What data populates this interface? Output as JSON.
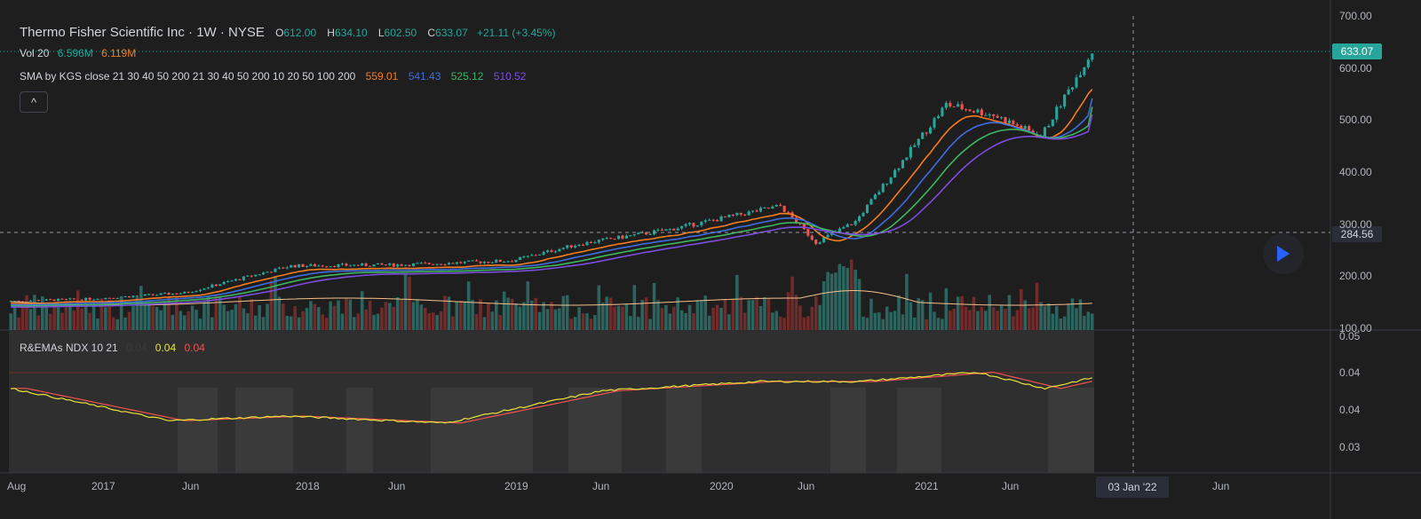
{
  "legend": {
    "symbol": "Thermo Fisher Scientific Inc · 1W · NYSE",
    "o_label": "O",
    "o_value": "612.00",
    "h_label": "H",
    "h_value": "634.10",
    "l_label": "L",
    "l_value": "602.50",
    "c_label": "C",
    "c_value": "633.07",
    "change": "+21.11 (+3.45%)",
    "vol_label": "Vol 20",
    "vol_value": "6.596M",
    "vol_ma": "6.119M",
    "sma_label": "SMA by KGS close 21 30 40 50 200 21 30 40 50 200 10 20 50 100 200",
    "sma_values": [
      "559.01",
      "541.43",
      "525.12",
      "510.52"
    ],
    "rema_label": "R&EMAs NDX 10 21",
    "rema_values": [
      "0.04",
      "0.04",
      "0.04"
    ],
    "collapse_icon": "^"
  },
  "colors": {
    "up": "#26a69a",
    "down": "#ef5350",
    "sma1": "#f57c1f",
    "sma2": "#3f6de0",
    "sma3": "#3fb560",
    "sma4": "#7c4ddf",
    "ema_fast": "#e8e33c",
    "ema_slow": "#ef5350",
    "price_tag": "#26a69a",
    "cursor_tag": "#2a2e39"
  },
  "price_axis": {
    "ticks": [
      "700.00",
      "600.00",
      "500.00",
      "400.00",
      "300.00",
      "200.00",
      "100.00"
    ],
    "current_price": "633.07",
    "cursor_price": "284.56"
  },
  "indicator_axis": {
    "ticks": [
      "0.05",
      "0.04",
      "0.04",
      "0.03"
    ]
  },
  "time_axis": {
    "ticks": [
      "Aug",
      "2017",
      "Jun",
      "2018",
      "Jun",
      "2019",
      "Jun",
      "2020",
      "Jun",
      "2021",
      "Jun",
      "Jun"
    ],
    "cursor_date": "03 Jan '22"
  },
  "chart_data": {
    "type": "line",
    "title": "Thermo Fisher Scientific Inc · 1W · NYSE",
    "x": [
      "2016-08",
      "2017-01",
      "2017-06",
      "2018-01",
      "2018-06",
      "2019-01",
      "2019-06",
      "2020-01",
      "2020-03",
      "2020-06",
      "2020-11",
      "2021-01",
      "2021-06",
      "2021-11"
    ],
    "series": [
      {
        "name": "C",
        "values": [
          152,
          156,
          168,
          220,
          222,
          230,
          290,
          335,
          265,
          350,
          530,
          505,
          468,
          633
        ]
      }
    ],
    "sma_values": [
      559.01,
      541.43,
      525.12,
      510.52
    ],
    "ylim": [
      100,
      700
    ],
    "volume": {
      "last": "6.596M",
      "ma20": "6.119M"
    },
    "indicator": {
      "name": "R&EMAs NDX 10 21",
      "ylim": [
        0.025,
        0.05
      ]
    }
  }
}
